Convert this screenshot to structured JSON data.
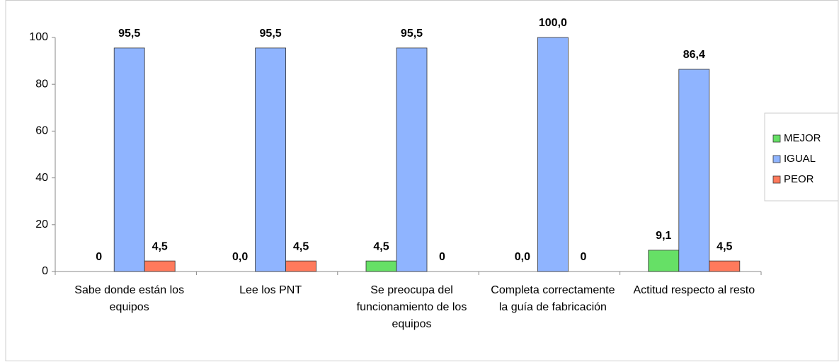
{
  "chart_data": {
    "type": "bar",
    "categories": [
      "Sabe donde están los equipos",
      "Lee los PNT",
      "Se preocupa del funcionamiento de los equipos",
      "Completa correctamente la guía de fabricación",
      "Actitud respecto al resto"
    ],
    "series": [
      {
        "name": "MEJOR",
        "color": "#66e066",
        "values": [
          0,
          0,
          4.5,
          0,
          9.1
        ],
        "value_labels": [
          "0",
          "0,0",
          "4,5",
          "0,0",
          "9,1"
        ]
      },
      {
        "name": "IGUAL",
        "color": "#8fb4ff",
        "values": [
          95.5,
          95.5,
          95.5,
          100,
          86.4
        ],
        "value_labels": [
          "95,5",
          "95,5",
          "95,5",
          "100,0",
          "86,4"
        ]
      },
      {
        "name": "PEOR",
        "color": "#ff7a5c",
        "values": [
          4.5,
          4.5,
          0,
          0,
          4.5
        ],
        "value_labels": [
          "4,5",
          "4,5",
          "0",
          "0",
          "4,5"
        ]
      }
    ],
    "ylim": [
      0,
      100
    ],
    "yticks": [
      0,
      20,
      40,
      60,
      80,
      100
    ],
    "grid": false,
    "legend": "right"
  }
}
